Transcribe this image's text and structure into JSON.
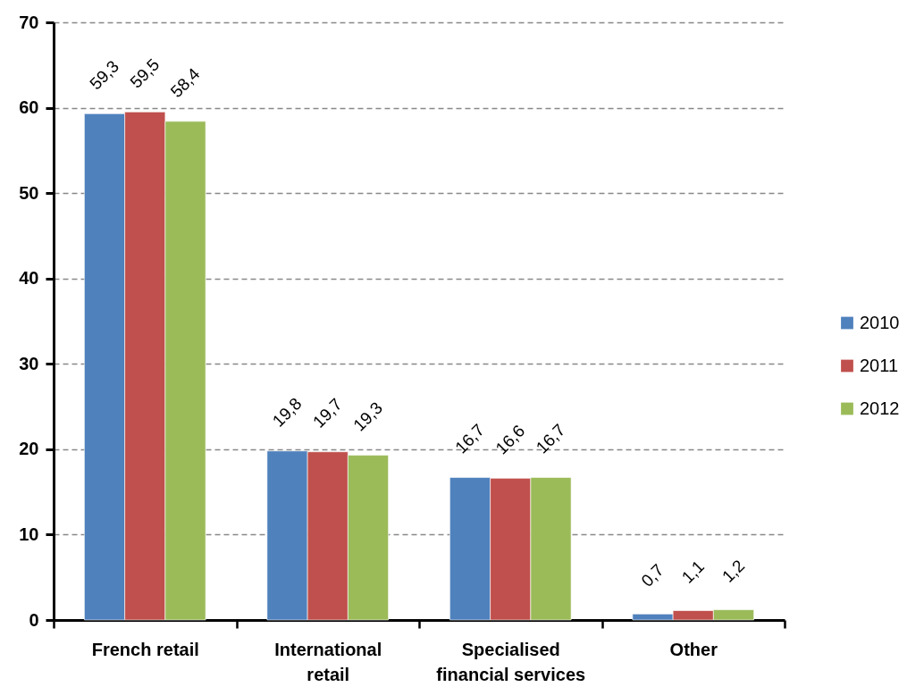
{
  "chart_data": {
    "type": "bar",
    "categories": [
      "French retail",
      "International retail",
      "Specialised financial services",
      "Other"
    ],
    "series": [
      {
        "name": "2010",
        "color": "#4f81bd",
        "values": [
          59.3,
          19.8,
          16.7,
          0.7
        ],
        "value_labels": [
          "59,3",
          "19,8",
          "16,7",
          "0,7"
        ]
      },
      {
        "name": "2011",
        "color": "#c0504d",
        "values": [
          59.5,
          19.7,
          16.6,
          1.1
        ],
        "value_labels": [
          "59,5",
          "19,7",
          "16,6",
          "1,1"
        ]
      },
      {
        "name": "2012",
        "color": "#9bbb59",
        "values": [
          58.4,
          19.3,
          16.7,
          1.2
        ],
        "value_labels": [
          "58,4",
          "19,3",
          "16,7",
          "1,2"
        ]
      }
    ],
    "ylim": [
      0,
      70
    ],
    "yticks": [
      0,
      10,
      20,
      30,
      40,
      50,
      60,
      70
    ],
    "grid": "y",
    "legend": "right"
  }
}
